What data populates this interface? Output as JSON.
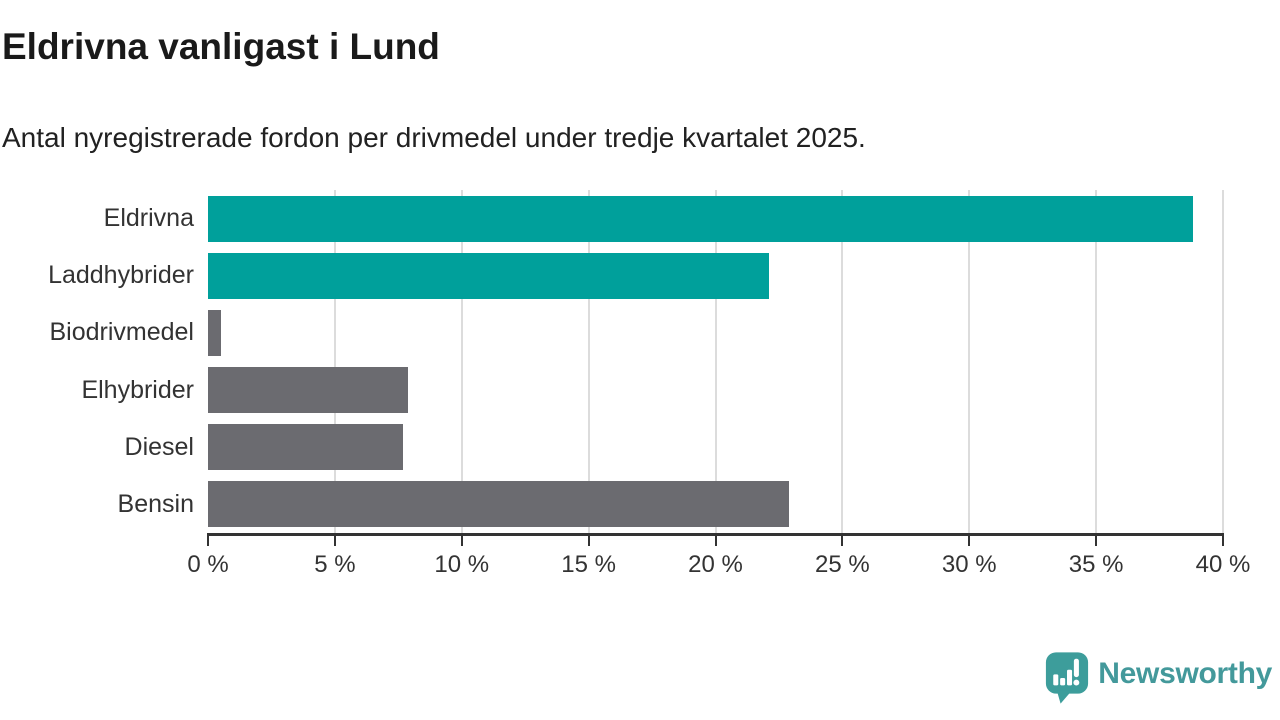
{
  "header": {
    "title": "Eldrivna vanligast i Lund",
    "subtitle": "Antal nyregistrerade fordon per drivmedel under tredje kvartalet 2025."
  },
  "chart_data": {
    "type": "bar",
    "orientation": "horizontal",
    "title": "Eldrivna vanligast i Lund",
    "subtitle": "Antal nyregistrerade fordon per drivmedel under tredje kvartalet 2025.",
    "categories": [
      "Eldrivna",
      "Laddhybrider",
      "Biodrivmedel",
      "Elhybrider",
      "Diesel",
      "Bensin"
    ],
    "values": [
      38.8,
      22.1,
      0.5,
      7.9,
      7.7,
      22.9
    ],
    "unit": "%",
    "bar_colors": [
      "#00A09B",
      "#00A09B",
      "#6B6B70",
      "#6B6B70",
      "#6B6B70",
      "#6B6B70"
    ],
    "accent_color": "#00A09B",
    "neutral_color": "#6B6B70",
    "xlim": [
      0,
      40
    ],
    "x_ticks": [
      0,
      5,
      10,
      15,
      20,
      25,
      30,
      35,
      40
    ],
    "x_tick_labels": [
      "0 %",
      "5 %",
      "10 %",
      "15 %",
      "20 %",
      "25 %",
      "30 %",
      "35 %",
      "40 %"
    ],
    "grid": "vertical",
    "grid_color": "#DCDCDC",
    "axis_color": "#333333",
    "text_color": "#333333",
    "legend": "none"
  },
  "footer": {
    "brand": "Newsworthy",
    "brand_color": "#43999B",
    "logo_color": "#3D9D9B",
    "logo_glyph_color": "#FFFFFF"
  }
}
